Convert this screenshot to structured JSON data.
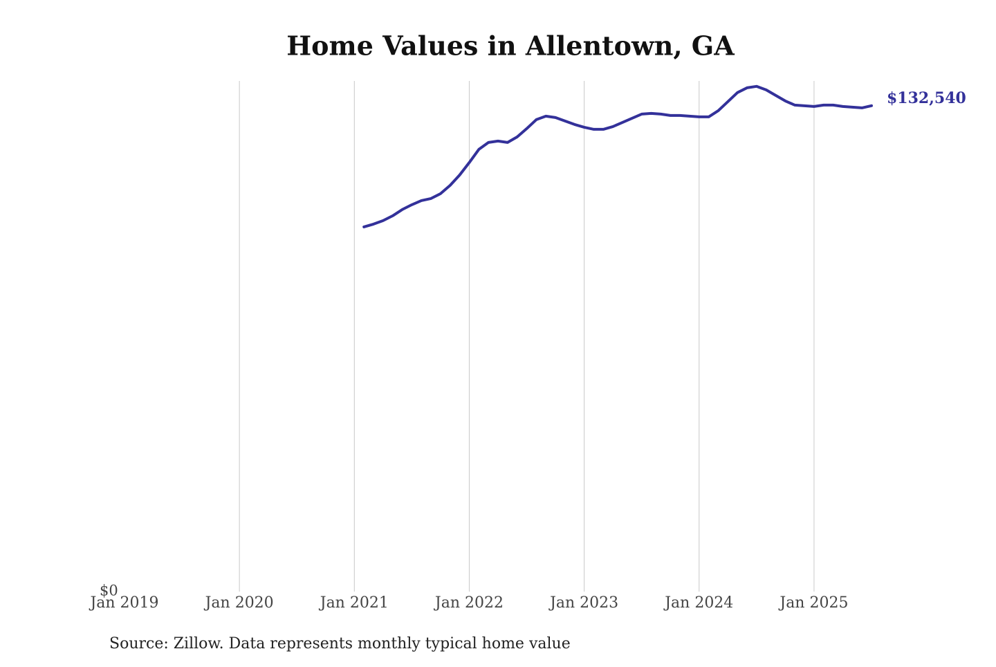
{
  "chart_data": {
    "type": "line",
    "title": "Home Values in Allentown, GA",
    "source": "Source: Zillow. Data represents monthly typical home value",
    "x": [
      "2021-02",
      "2021-03",
      "2021-04",
      "2021-05",
      "2021-06",
      "2021-07",
      "2021-08",
      "2021-09",
      "2021-10",
      "2021-11",
      "2021-12",
      "2022-01",
      "2022-02",
      "2022-03",
      "2022-04",
      "2022-05",
      "2022-06",
      "2022-07",
      "2022-08",
      "2022-09",
      "2022-10",
      "2022-11",
      "2022-12",
      "2023-01",
      "2023-02",
      "2023-03",
      "2023-04",
      "2023-05",
      "2023-06",
      "2023-07",
      "2023-08",
      "2023-09",
      "2023-10",
      "2023-11",
      "2023-12",
      "2024-01",
      "2024-02",
      "2024-03",
      "2024-04",
      "2024-05",
      "2024-06",
      "2024-07",
      "2024-08",
      "2024-09",
      "2024-10",
      "2024-11",
      "2024-12",
      "2025-01",
      "2025-02",
      "2025-03",
      "2025-04",
      "2025-05",
      "2025-06",
      "2025-07"
    ],
    "series": [
      {
        "name": "Allentown, GA",
        "color": "#33319a",
        "values": [
          99490,
          100240,
          101190,
          102510,
          104210,
          105530,
          106660,
          107230,
          108550,
          110820,
          113650,
          117050,
          120630,
          122520,
          122900,
          122520,
          124030,
          126300,
          128750,
          129700,
          129320,
          128370,
          127430,
          126670,
          126110,
          126110,
          126860,
          128000,
          129130,
          130260,
          130450,
          130260,
          129890,
          129890,
          129700,
          129510,
          129510,
          131210,
          133660,
          136120,
          137440,
          137820,
          136870,
          135360,
          133850,
          132720,
          132530,
          132340,
          132720,
          132720,
          132340,
          132150,
          131960,
          132540
        ],
        "value_labels": [
          null,
          null,
          null,
          null,
          null,
          null,
          null,
          null,
          null,
          null,
          null,
          null,
          null,
          null,
          null,
          null,
          null,
          null,
          null,
          null,
          null,
          null,
          null,
          null,
          null,
          null,
          null,
          null,
          null,
          null,
          null,
          null,
          null,
          null,
          null,
          null,
          null,
          null,
          null,
          null,
          null,
          null,
          null,
          null,
          null,
          null,
          null,
          null,
          null,
          null,
          null,
          null,
          null,
          "$132,540"
        ]
      }
    ],
    "xlim": [
      "2019-01",
      "2025-07"
    ],
    "xticks": [
      {
        "value": "2019-01",
        "label": "Jan 2019"
      },
      {
        "value": "2020-01",
        "label": "Jan 2020"
      },
      {
        "value": "2021-01",
        "label": "Jan 2021"
      },
      {
        "value": "2022-01",
        "label": "Jan 2022"
      },
      {
        "value": "2023-01",
        "label": "Jan 2023"
      },
      {
        "value": "2024-01",
        "label": "Jan 2024"
      },
      {
        "value": "2025-01",
        "label": "Jan 2025"
      }
    ],
    "ylim": [
      0,
      139300
    ],
    "yticks": [
      {
        "value": 0,
        "label": "$0"
      }
    ],
    "grid": "x"
  }
}
